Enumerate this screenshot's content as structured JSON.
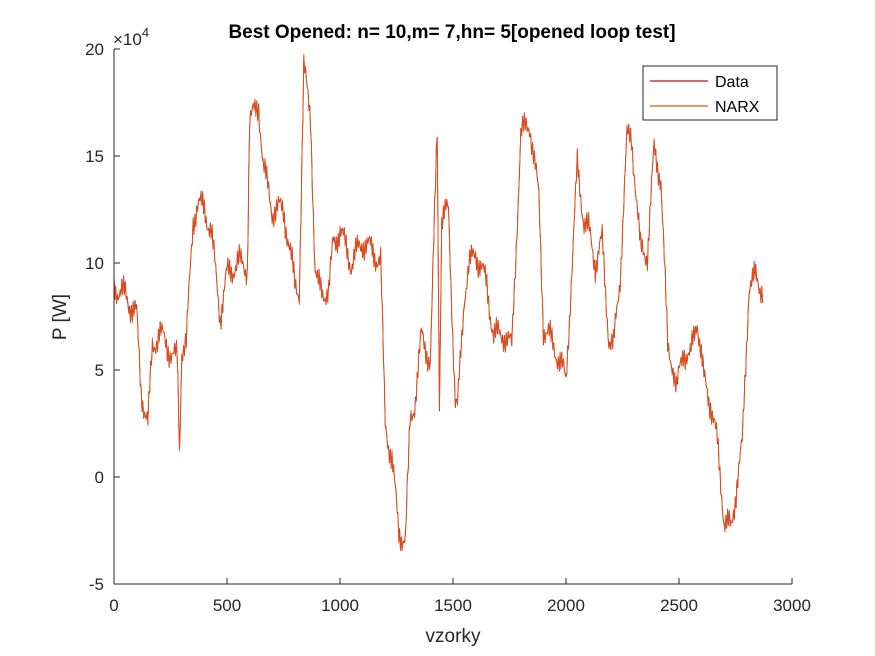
{
  "chart_data": {
    "type": "line",
    "title": "Best Opened: n= 10,m= 7,hn= 5[opened loop test]",
    "xlabel": "vzorky",
    "ylabel": "P [W]",
    "y_exponent_base": "×10",
    "y_exponent_power": "4",
    "xlim": [
      0,
      3000
    ],
    "ylim": [
      -5,
      20
    ],
    "y_scale_factor": 10000,
    "x_ticks": [
      0,
      500,
      1000,
      1500,
      2000,
      2500,
      3000
    ],
    "x_tick_labels": [
      "0",
      "500",
      "1000",
      "1500",
      "2000",
      "2500",
      "3000"
    ],
    "y_ticks": [
      -5,
      0,
      5,
      10,
      15,
      20
    ],
    "y_tick_labels": [
      "-5",
      "0",
      "5",
      "10",
      "15",
      "20"
    ],
    "grid": false,
    "legend_position": "top-right",
    "colors": {
      "Data": "#c0131d",
      "NARX": "#d95319"
    },
    "x": [
      0,
      50,
      100,
      120,
      150,
      170,
      200,
      240,
      280,
      290,
      300,
      320,
      350,
      370,
      400,
      430,
      470,
      500,
      550,
      590,
      600,
      640,
      660,
      700,
      750,
      800,
      820,
      840,
      870,
      890,
      900,
      950,
      970,
      1000,
      1050,
      1100,
      1150,
      1180,
      1200,
      1230,
      1260,
      1290,
      1310,
      1330,
      1360,
      1400,
      1430,
      1440,
      1450,
      1480,
      1510,
      1520,
      1550,
      1570,
      1600,
      1650,
      1680,
      1720,
      1760,
      1800,
      1840,
      1880,
      1900,
      1930,
      1970,
      2000,
      2050,
      2080,
      2100,
      2130,
      2160,
      2190,
      2210,
      2240,
      2270,
      2290,
      2330,
      2360,
      2390,
      2420,
      2450,
      2470,
      2490,
      2520,
      2550,
      2580,
      2610,
      2640,
      2670,
      2700,
      2730,
      2760,
      2780,
      2810,
      2840,
      2870
    ],
    "series": [
      {
        "name": "Data",
        "values": [
          8.9,
          8.5,
          7.6,
          4.0,
          2.5,
          6.0,
          6.8,
          6.0,
          5.5,
          1.2,
          6.0,
          6.3,
          12.0,
          12.8,
          12.5,
          11.5,
          7.5,
          9.5,
          10.0,
          9.8,
          16.5,
          17.5,
          14.5,
          12.5,
          12.5,
          9.0,
          8.8,
          19.0,
          17.0,
          9.5,
          9.0,
          8.5,
          11.0,
          11.5,
          10.0,
          11.0,
          10.5,
          10.0,
          2.5,
          0.8,
          -2.5,
          -3.0,
          2.5,
          3.5,
          6.5,
          5.5,
          16.2,
          3.5,
          12.0,
          12.5,
          3.5,
          3.2,
          8.5,
          9.8,
          10.5,
          9.0,
          6.5,
          6.8,
          6.0,
          16.0,
          16.5,
          13.0,
          7.0,
          6.5,
          5.5,
          4.5,
          14.5,
          12.0,
          11.5,
          10.0,
          11.0,
          6.5,
          6.0,
          9.5,
          15.8,
          16.0,
          10.5,
          10.5,
          15.2,
          14.0,
          6.0,
          5.5,
          4.0,
          6.0,
          5.5,
          7.5,
          4.5,
          3.5,
          1.5,
          -2.0,
          -2.5,
          0.0,
          1.5,
          9.0,
          9.3,
          8.8
        ]
      },
      {
        "name": "NARX",
        "values": [
          9.0,
          8.4,
          7.5,
          4.1,
          2.4,
          6.1,
          6.7,
          6.1,
          5.4,
          1.1,
          6.1,
          6.2,
          12.1,
          12.7,
          12.6,
          11.4,
          7.6,
          9.4,
          10.1,
          9.7,
          16.6,
          17.4,
          14.6,
          12.4,
          12.6,
          9.1,
          8.7,
          19.1,
          16.9,
          9.6,
          8.9,
          8.6,
          10.9,
          11.6,
          9.9,
          11.1,
          10.4,
          10.1,
          2.4,
          0.9,
          -2.6,
          -2.9,
          2.6,
          3.4,
          6.6,
          5.4,
          16.1,
          3.6,
          12.1,
          12.4,
          3.6,
          3.1,
          8.6,
          9.7,
          10.6,
          8.9,
          6.6,
          6.7,
          6.1,
          15.9,
          16.6,
          12.9,
          7.1,
          6.4,
          5.6,
          4.4,
          14.6,
          11.9,
          11.6,
          9.9,
          11.1,
          6.4,
          6.1,
          9.4,
          15.9,
          15.9,
          10.6,
          10.4,
          15.3,
          13.9,
          6.1,
          5.4,
          4.1,
          5.9,
          5.6,
          7.4,
          4.6,
          3.4,
          1.6,
          -2.1,
          -2.4,
          0.1,
          1.4,
          9.1,
          9.2,
          8.9
        ]
      }
    ]
  }
}
